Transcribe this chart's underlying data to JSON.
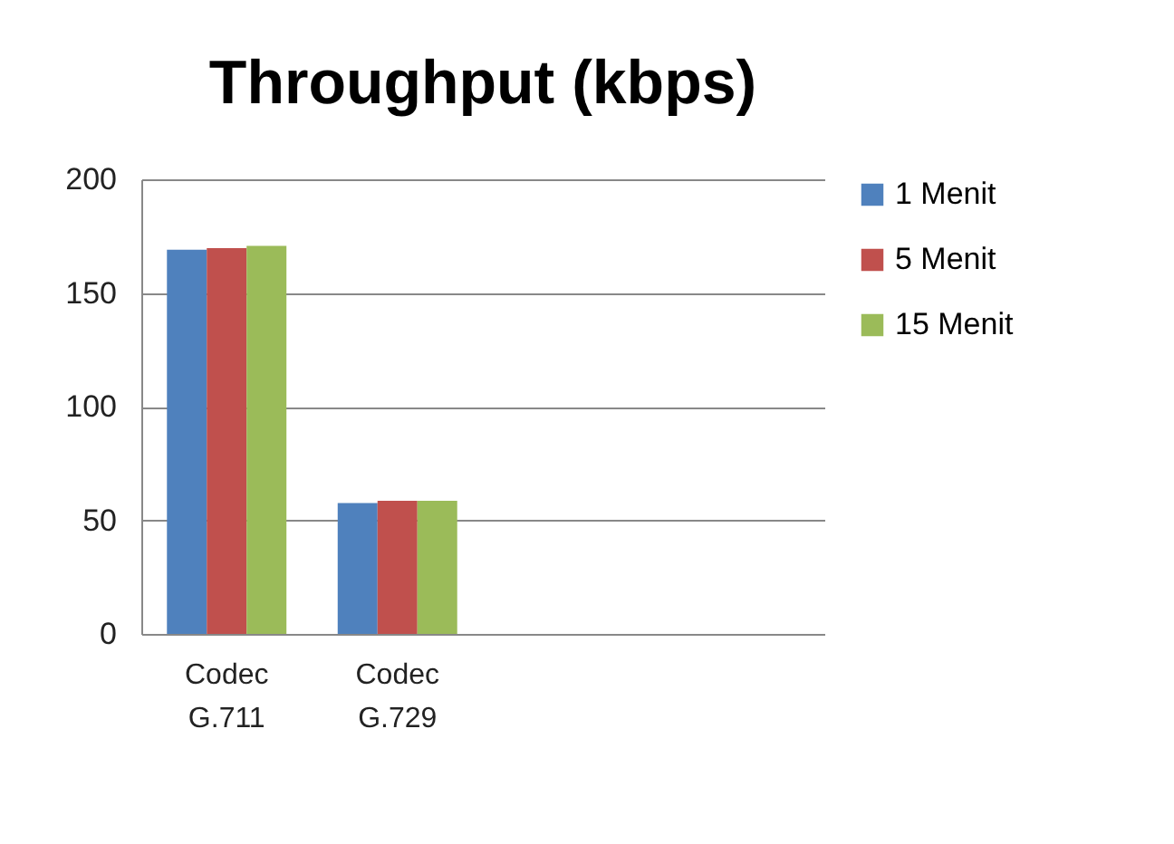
{
  "chart_data": {
    "type": "bar",
    "title": "Throughput (kbps)",
    "categories": [
      "Codec G.711",
      "Codec G.729",
      null,
      null
    ],
    "series": [
      {
        "name": "1 Menit",
        "color": "#4f81bd",
        "values": [
          169,
          57.6,
          null,
          null
        ]
      },
      {
        "name": "5 Menit",
        "color": "#c0504d",
        "values": [
          169.7,
          58.6,
          null,
          null
        ]
      },
      {
        "name": "15 Menit",
        "color": "#9bbb59",
        "values": [
          170.7,
          58.6,
          null,
          null
        ]
      }
    ],
    "ylim": [
      0,
      200
    ],
    "yticks": [
      0,
      50,
      100,
      150,
      200
    ],
    "grid": "y",
    "legend": "right"
  }
}
